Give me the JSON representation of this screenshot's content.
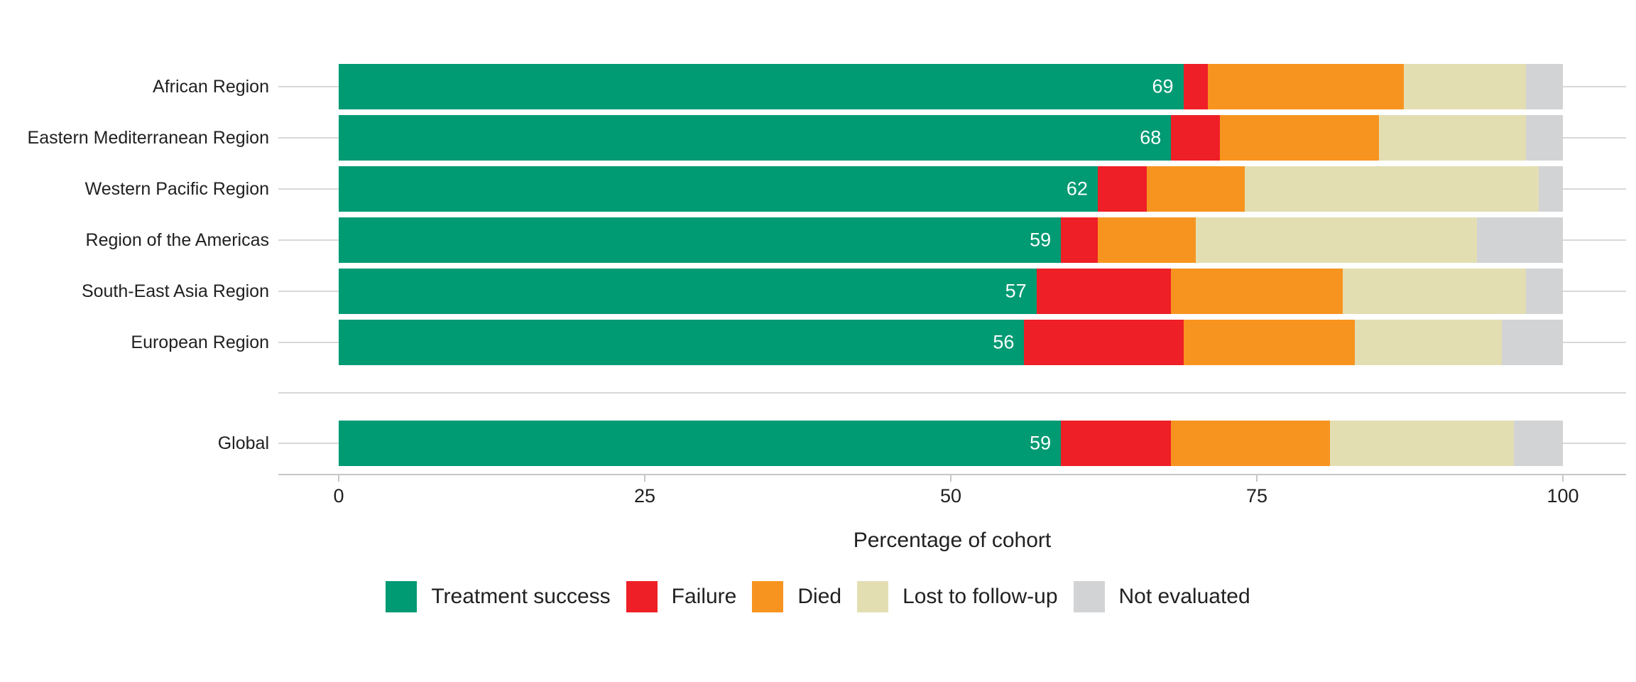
{
  "chart_data": {
    "type": "bar",
    "stacked": true,
    "orientation": "horizontal",
    "title": "",
    "xlabel": "Percentage of cohort",
    "ylabel": "",
    "xlim": [
      0,
      100
    ],
    "x_ticks": [
      0,
      25,
      50,
      75,
      100
    ],
    "x_tick_labels": [
      "0",
      "25",
      "50",
      "75",
      "100"
    ],
    "grid": "horizontal-light",
    "legend_position": "bottom",
    "legend": [
      "Treatment success",
      "Failure",
      "Died",
      "Lost to follow-up",
      "Not evaluated"
    ],
    "colors": [
      "#009A73",
      "#EE1F26",
      "#F79420",
      "#E3DEB2",
      "#D2D3D5"
    ],
    "categories": [
      "African Region",
      "Eastern Mediterranean Region",
      "Western Pacific Region",
      "Region of the Americas",
      "South-East Asia Region",
      "European Region",
      "Global"
    ],
    "gap_before_category": "Global",
    "series": [
      {
        "name": "Treatment success",
        "values": [
          69,
          68,
          62,
          59,
          57,
          56,
          59
        ]
      },
      {
        "name": "Failure",
        "values": [
          2,
          4,
          4,
          3,
          11,
          13,
          9
        ]
      },
      {
        "name": "Died",
        "values": [
          16,
          13,
          8,
          8,
          14,
          14,
          13
        ]
      },
      {
        "name": "Lost to follow-up",
        "values": [
          10,
          12,
          24,
          23,
          15,
          12,
          15
        ]
      },
      {
        "name": "Not evaluated",
        "values": [
          3,
          3,
          2,
          7,
          3,
          5,
          4
        ]
      }
    ],
    "bar_labels": [
      "69",
      "68",
      "62",
      "59",
      "57",
      "56",
      "59"
    ]
  }
}
